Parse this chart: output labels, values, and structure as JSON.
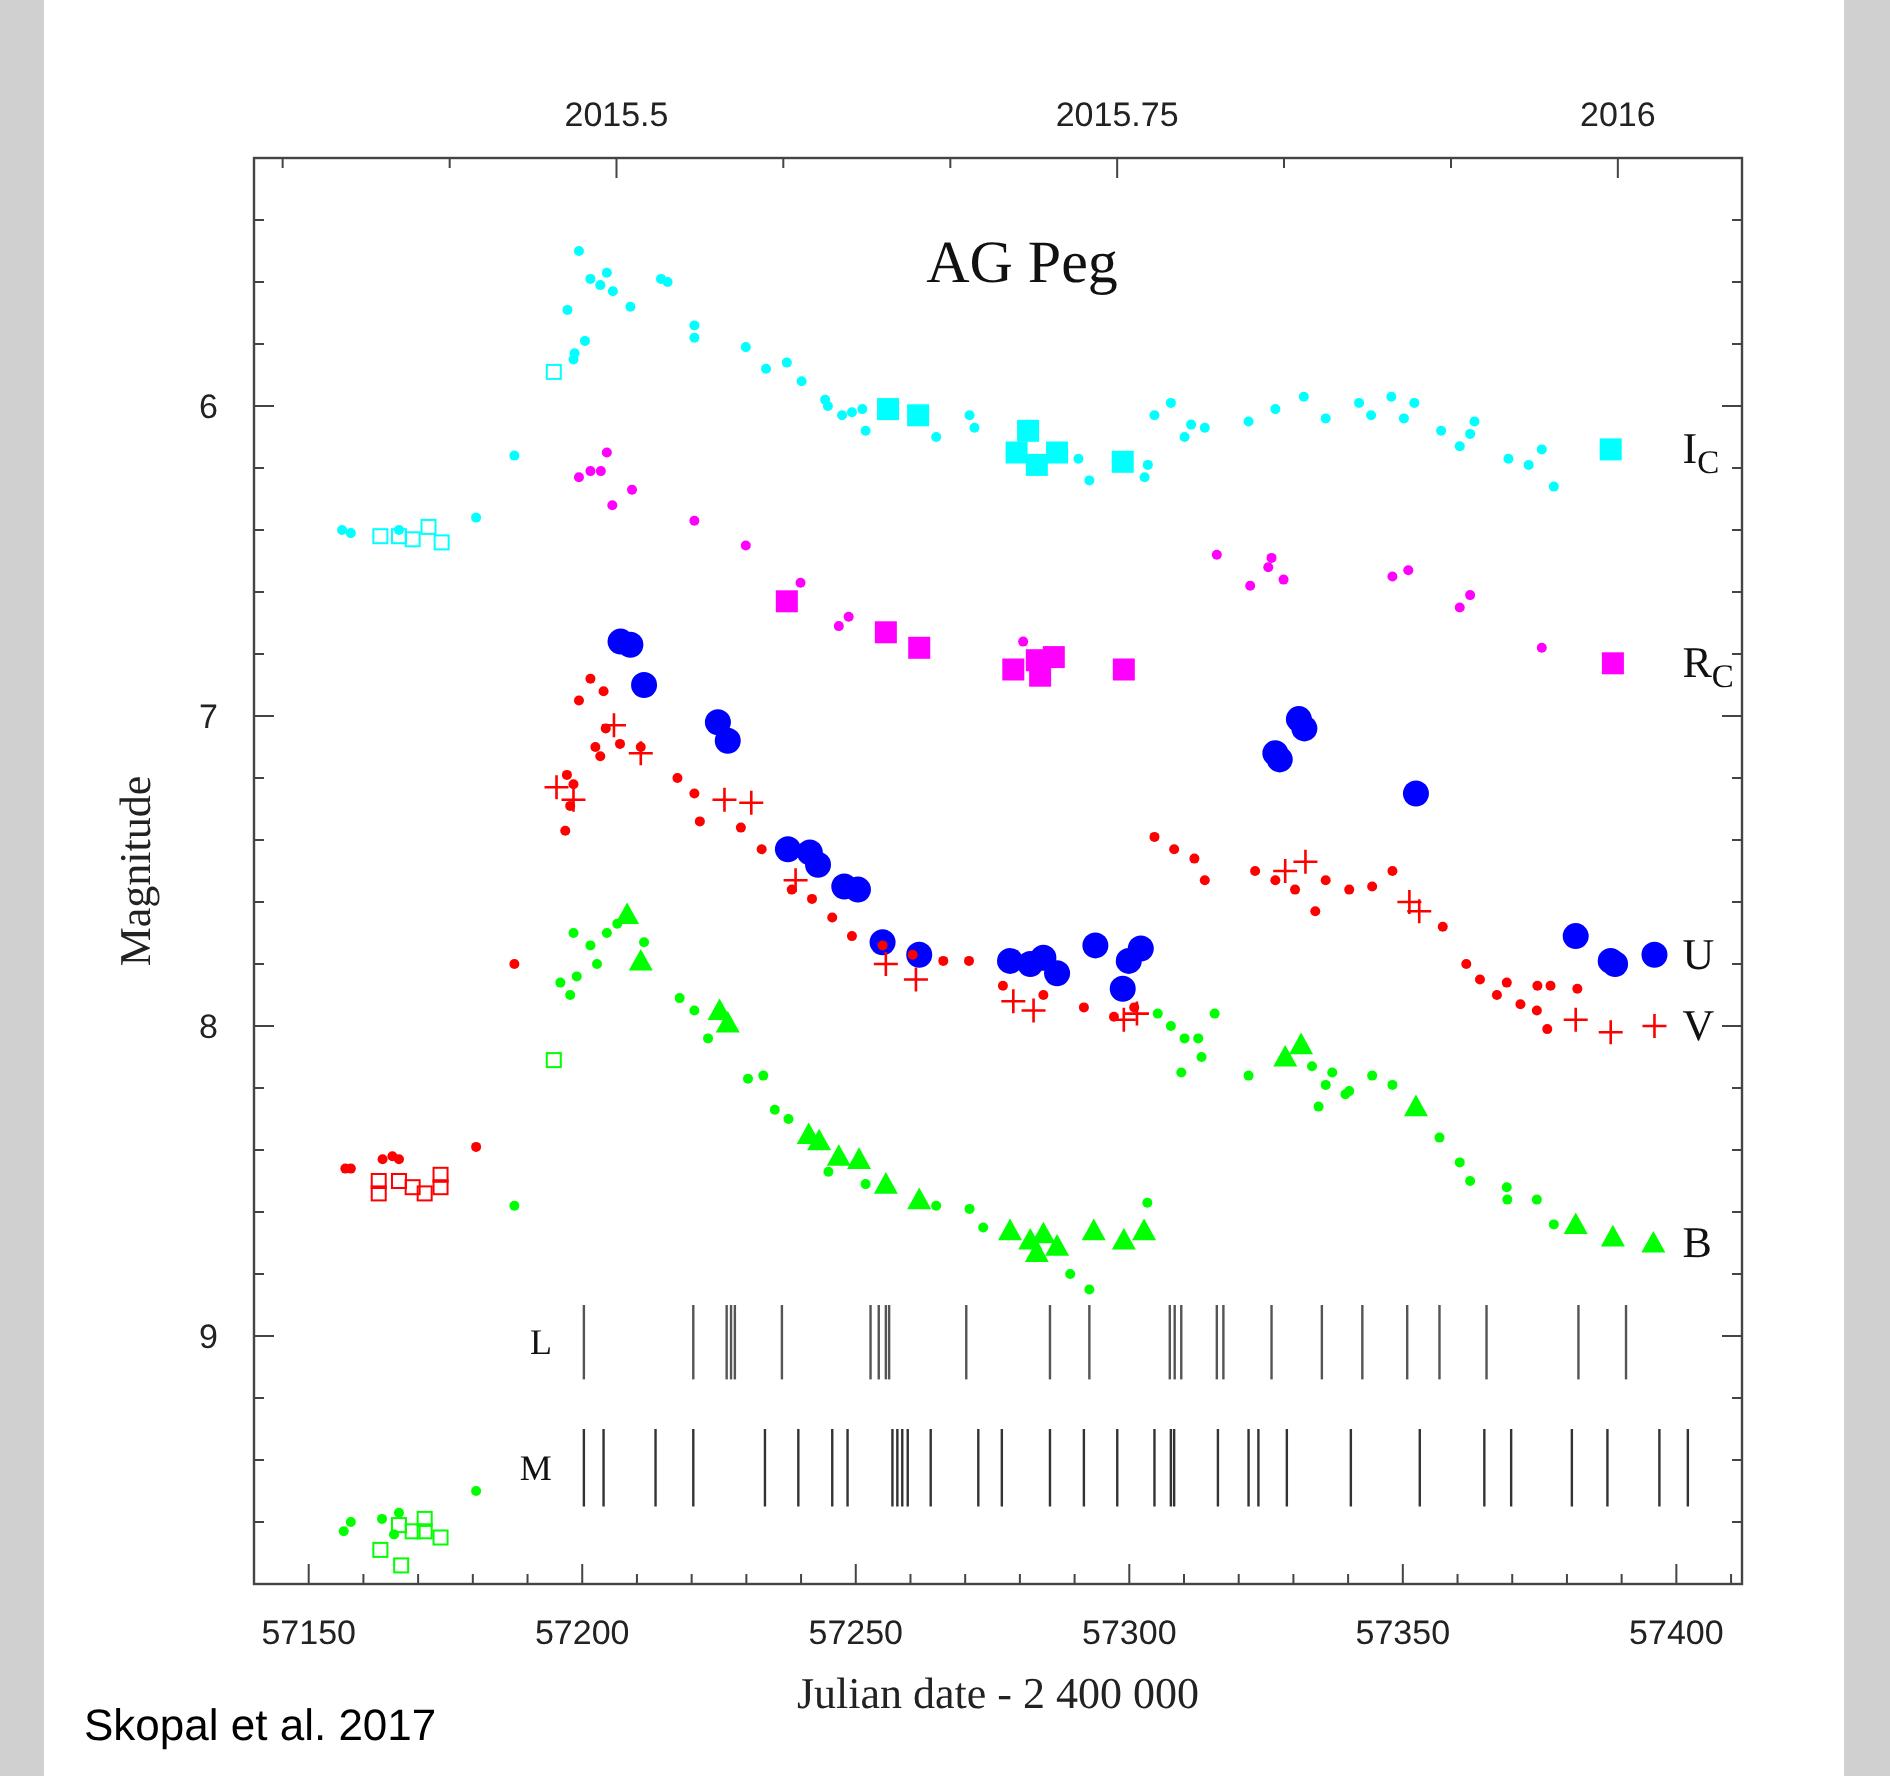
{
  "chart_data": {
    "type": "scatter",
    "title": "AG Peg",
    "xlabel": "Julian date - 2 400 000",
    "ylabel": "Magnitude",
    "annotations": [
      "Skopal et al. 2017"
    ],
    "xlim": [
      57140,
      57412
    ],
    "ylim": [
      9.8,
      5.2
    ],
    "xticks": [
      {
        "value": 57140,
        "label": null
      },
      57150,
      {
        "value": 57160,
        "label": null
      },
      {
        "value": 57170,
        "label": null
      },
      {
        "value": 57180,
        "label": null
      },
      {
        "value": 57190,
        "label": null
      },
      57200,
      {
        "value": 57210,
        "label": null
      },
      {
        "value": 57220,
        "label": null
      },
      {
        "value": 57230,
        "label": null
      },
      {
        "value": 57240,
        "label": null
      },
      57250,
      {
        "value": 57260,
        "label": null
      },
      {
        "value": 57270,
        "label": null
      },
      {
        "value": 57280,
        "label": null
      },
      {
        "value": 57290,
        "label": null
      },
      57300,
      {
        "value": 57310,
        "label": null
      },
      {
        "value": 57320,
        "label": null
      },
      {
        "value": 57330,
        "label": null
      },
      {
        "value": 57340,
        "label": null
      },
      57350,
      {
        "value": 57360,
        "label": null
      },
      {
        "value": 57370,
        "label": null
      },
      {
        "value": 57380,
        "label": null
      },
      {
        "value": 57390,
        "label": null
      },
      57400,
      {
        "value": 57410,
        "label": null
      }
    ],
    "yticks": [
      {
        "value": 5.4,
        "label": null
      },
      {
        "value": 5.6,
        "label": null
      },
      {
        "value": 5.8,
        "label": null
      },
      6,
      {
        "value": 6.2,
        "label": null
      },
      {
        "value": 6.4,
        "label": null
      },
      {
        "value": 6.6,
        "label": null
      },
      {
        "value": 6.8,
        "label": null
      },
      7,
      {
        "value": 7.2,
        "label": null
      },
      {
        "value": 7.4,
        "label": null
      },
      {
        "value": 7.6,
        "label": null
      },
      {
        "value": 7.8,
        "label": null
      },
      8,
      {
        "value": 8.2,
        "label": null
      },
      {
        "value": 8.4,
        "label": null
      },
      {
        "value": 8.6,
        "label": null
      },
      {
        "value": 8.8,
        "label": null
      },
      9,
      {
        "value": 9.2,
        "label": null
      },
      {
        "value": 9.4,
        "label": null
      },
      {
        "value": 9.6,
        "label": null
      }
    ],
    "x2lim": [
      2015.319,
      2016.062
    ],
    "x2ticks": [
      {
        "value": 2015.3333,
        "label": null
      },
      {
        "value": 2015.4167,
        "label": null
      },
      2015.5,
      {
        "value": 2015.5833,
        "label": null
      },
      {
        "value": 2015.6667,
        "label": null
      },
      2015.75,
      {
        "value": 2015.8333,
        "label": null
      },
      {
        "value": 2015.9167,
        "label": null
      },
      2016
    ],
    "grid": false,
    "series": [
      {
        "marker": "circle",
        "color": "#00ffff",
        "x": [
          57156.1,
          57157.7,
          57166.5,
          57180.6,
          57187.6,
          57198.4,
          57198.6,
          57200.5,
          57197.3,
          57199.4,
          57201.5,
          57203.3,
          57204.5,
          57205.6,
          57208.8,
          57214.4,
          57215.6,
          57220.5,
          57220.5,
          57229.9,
          57233.6,
          57237.4,
          57240.1,
          57244.4,
          57244.9,
          57247.5,
          57249.3,
          57251.8,
          57251.2,
          57264.7,
          57270.8,
          57271.7,
          57290.7,
          57292.7,
          57303.4,
          57302.8,
          57304.6,
          57307.6,
          57310.1,
          57311.3,
          57313.8,
          57321.8,
          57326.7,
          57331.9,
          57335.9,
          57342,
          57344.2,
          57347.9,
          57350.2,
          57352.1,
          57357,
          57360.4,
          57362.3,
          57363.1,
          57369.3,
          57373,
          57375.4,
          57377.6
        ],
        "values": [
          6.4,
          6.41,
          6.4,
          6.36,
          6.16,
          5.85,
          5.83,
          5.79,
          5.69,
          5.5,
          5.59,
          5.61,
          5.57,
          5.63,
          5.68,
          5.59,
          5.6,
          5.74,
          5.78,
          5.81,
          5.88,
          5.86,
          5.92,
          5.98,
          6.0,
          6.03,
          6.02,
          6.08,
          6.01,
          6.1,
          6.03,
          6.07,
          6.17,
          6.24,
          6.19,
          6.23,
          6.03,
          5.99,
          6.1,
          6.06,
          6.07,
          6.05,
          6.01,
          5.97,
          6.04,
          5.99,
          6.03,
          5.97,
          6.04,
          5.99,
          6.08,
          6.13,
          6.09,
          6.05,
          6.17,
          6.19,
          6.14,
          6.26
        ]
      },
      {
        "marker": "square",
        "color": "#00ffff",
        "name": "I$_{C}$",
        "x": [
          57255.9,
          57261.4,
          57281.5,
          57279.4,
          57283.1,
          57286.8,
          57298.8,
          57388
        ],
        "values": [
          6.01,
          6.03,
          6.08,
          6.15,
          6.19,
          6.15,
          6.18,
          6.14
        ]
      },
      {
        "marker": "square",
        "color": "#00ffff",
        "x": [
          57163.1,
          57166.5,
          57169,
          57171.9,
          57174.3,
          57194.8
        ],
        "values": [
          6.42,
          6.42,
          6.43,
          6.39,
          6.44,
          5.89
        ]
      },
      {
        "marker": "circle",
        "color": "#ff00ff",
        "x": [
          57204.5,
          57199.4,
          57201.5,
          57203.4,
          57205.5,
          57209.1,
          57220.5,
          57229.9,
          57239.9,
          57246.9,
          57248.7,
          57280.6,
          57316,
          57322.1,
          57326,
          57325.4,
          57328.2,
          57348.1,
          57351,
          57360.4,
          57362.3,
          57375.4
        ],
        "values": [
          6.15,
          6.23,
          6.21,
          6.21,
          6.32,
          6.27,
          6.37,
          6.45,
          6.57,
          6.71,
          6.68,
          6.76,
          6.48,
          6.58,
          6.49,
          6.52,
          6.56,
          6.55,
          6.53,
          6.65,
          6.61,
          6.78
        ]
      },
      {
        "marker": "square",
        "color": "#ff00ff",
        "name": "R$_{C}$",
        "x": [
          57237.4,
          57255.5,
          57261.6,
          57278.8,
          57283.1,
          57286.2,
          57283.7,
          57299,
          57388.4
        ],
        "values": [
          6.63,
          6.73,
          6.78,
          6.85,
          6.82,
          6.81,
          6.87,
          6.85,
          6.83
        ]
      },
      {
        "marker": "circle",
        "color": "#0000ff",
        "name": "U",
        "x": [
          57207,
          57208.8,
          57211.3,
          57224.8,
          57226.6,
          57237.6,
          57241.6,
          57243.1,
          57247.9,
          57250.4,
          57254.9,
          57261.6,
          57278.2,
          57281.9,
          57284.3,
          57286.8,
          57293.8,
          57299.9,
          57302.1,
          57298.8,
          57331,
          57332,
          57326.7,
          57327.5,
          57352.4,
          57381.6,
          57388,
          57388.8,
          57396
        ],
        "values": [
          6.76,
          6.77,
          6.9,
          7.02,
          7.08,
          7.43,
          7.44,
          7.48,
          7.55,
          7.56,
          7.73,
          7.77,
          7.79,
          7.8,
          7.78,
          7.83,
          7.74,
          7.79,
          7.75,
          7.88,
          7.01,
          7.04,
          7.12,
          7.14,
          7.25,
          7.71,
          7.79,
          7.8,
          7.77
        ]
      },
      {
        "marker": "circle",
        "color": "#ff0000",
        "x": [
          57156.7,
          57157.7,
          57163.5,
          57165.3,
          57166.5,
          57180.6,
          57187.6,
          57197.2,
          57197.8,
          57196.9,
          57199.4,
          57198.4,
          57203.3,
          57203.9,
          57201.5,
          57204.3,
          57206.9,
          57210.7,
          57202.4,
          57217.4,
          57220.5,
          57221.5,
          57229,
          57232.8,
          57238.3,
          57242,
          57245.7,
          57249.3,
          57254.9,
          57260.4,
          57266,
          57270.7,
          57276.9,
          57284.3,
          57291.7,
          57297.2,
          57300.9,
          57304.6,
          57308.2,
          57311.9,
          57313.8,
          57323,
          57326.7,
          57330.3,
          57334,
          57335.9,
          57340.2,
          57344.4,
          57348.1,
          57357.3,
          57361.6,
          57364.1,
          57367.2,
          57369,
          57371.5,
          57374.5,
          57376.4,
          57374.6,
          57377,
          57381.9
        ],
        "values": [
          8.46,
          8.46,
          8.43,
          8.42,
          8.43,
          8.39,
          7.8,
          7.19,
          7.29,
          7.37,
          6.95,
          7.22,
          7.13,
          6.92,
          6.88,
          7.04,
          7.09,
          7.1,
          7.1,
          7.2,
          7.25,
          7.34,
          7.36,
          7.43,
          7.56,
          7.59,
          7.65,
          7.71,
          7.74,
          7.77,
          7.79,
          7.79,
          7.87,
          7.9,
          7.94,
          7.97,
          7.94,
          7.39,
          7.43,
          7.46,
          7.53,
          7.5,
          7.53,
          7.56,
          7.63,
          7.53,
          7.56,
          7.55,
          7.5,
          7.68,
          7.8,
          7.85,
          7.9,
          7.86,
          7.93,
          7.95,
          8.01,
          7.87,
          7.87,
          7.88
        ]
      },
      {
        "marker": "cross",
        "color": "#ff0000",
        "name": "V",
        "x": [
          57195.3,
          57198.4,
          57205.8,
          57210.7,
          57226,
          57230.9,
          57239,
          57255.5,
          57261,
          57278.8,
          57282.5,
          57299,
          57301.4,
          57328.5,
          57332.2,
          57351.2,
          57353,
          57381.6,
          57388,
          57396
        ],
        "values": [
          7.23,
          7.27,
          7.03,
          7.12,
          7.27,
          7.28,
          7.53,
          7.8,
          7.85,
          7.92,
          7.95,
          7.98,
          7.96,
          7.5,
          7.47,
          7.6,
          7.63,
          7.98,
          8.02,
          8.0
        ]
      },
      {
        "marker": "square",
        "color": "#ff0000",
        "x": [
          57162.8,
          57162.8,
          57166.5,
          57169,
          57171.2,
          57174.1,
          57174.1
        ],
        "values": [
          8.5,
          8.54,
          8.5,
          8.52,
          8.54,
          8.48,
          8.52
        ]
      },
      {
        "marker": "circle",
        "color": "#00ff00",
        "x": [
          57156.4,
          57157.7,
          57163.4,
          57166.5,
          57165.6,
          57180.6,
          57187.6,
          57198.4,
          57199,
          57196,
          57197.8,
          57201.5,
          57202.7,
          57204.5,
          57206.4,
          57211.3,
          57217.8,
          57220.5,
          57223,
          57230.3,
          57233.1,
          57235.2,
          57237.7,
          57245,
          57251.8,
          57264.7,
          57270.8,
          57273.3,
          57289.2,
          57292.7,
          57303.3,
          57305.2,
          57307.6,
          57310.1,
          57309.5,
          57312.6,
          57313.2,
          57315.6,
          57321.8,
          57333.4,
          57334.6,
          57335.9,
          57337.1,
          57339.5,
          57340.2,
          57344.4,
          57348.1,
          57356.7,
          57360.4,
          57362.3,
          57369,
          57369.1,
          57374.5,
          57377.6
        ],
        "values": [
          9.63,
          9.6,
          9.59,
          9.57,
          9.64,
          9.5,
          8.58,
          7.7,
          7.84,
          7.86,
          7.9,
          7.74,
          7.8,
          7.7,
          7.67,
          7.73,
          7.91,
          7.95,
          8.04,
          8.17,
          8.16,
          8.27,
          8.3,
          8.47,
          8.51,
          8.58,
          8.59,
          8.65,
          8.8,
          8.85,
          8.57,
          7.96,
          8.0,
          8.04,
          8.15,
          8.04,
          8.1,
          7.96,
          8.16,
          8.13,
          8.26,
          8.19,
          8.15,
          8.22,
          8.21,
          8.16,
          8.19,
          8.36,
          8.44,
          8.5,
          8.52,
          8.56,
          8.56,
          8.64
        ]
      },
      {
        "marker": "triangle",
        "color": "#00ff00",
        "name": "B",
        "x": [
          57208.2,
          57210.7,
          57225.1,
          57226.6,
          57241.4,
          57243.3,
          57246.9,
          57250.6,
          57255.5,
          57261.6,
          57278.2,
          57281.9,
          57284.3,
          57283.1,
          57286.8,
          57293.5,
          57299,
          57302.7,
          57328.5,
          57331.4,
          57352.4,
          57381.6,
          57388.4,
          57395.8
        ],
        "values": [
          7.64,
          7.79,
          7.95,
          7.99,
          8.35,
          8.37,
          8.42,
          8.43,
          8.51,
          8.56,
          8.66,
          8.69,
          8.67,
          8.73,
          8.71,
          8.66,
          8.69,
          8.66,
          8.1,
          8.06,
          8.26,
          8.64,
          8.68,
          8.7
        ]
      },
      {
        "marker": "square",
        "color": "#00ff00",
        "x": [
          57163.1,
          57166.5,
          57166.9,
          57169,
          57171.2,
          57171.2,
          57174.1,
          57194.8
        ],
        "values": [
          9.69,
          9.61,
          9.74,
          9.63,
          9.59,
          9.63,
          9.65,
          8.11
        ]
      },
      {
        "type": "bar",
        "name": "M",
        "color": "#333333",
        "x": [
          57200.3,
          57203.9,
          57213.4,
          57220.3,
          57233.4,
          57239.5,
          57245.7,
          57248.5,
          57256.7,
          57257.6,
          57258.5,
          57259.5,
          57263.7,
          57272.4,
          57276.7,
          57285.5,
          57291.7,
          57297.8,
          57304.6,
          57307.6,
          57308.2,
          57316.2,
          57321.8,
          57323.6,
          57328.8,
          57340.5,
          57353.1,
          57364.9,
          57369.8,
          57380.9,
          57387.4,
          57396.9,
          57402.1
        ],
        "base": [
          9.3,
          9.3,
          9.3,
          9.3,
          9.3,
          9.3,
          9.3,
          9.3,
          9.3,
          9.3,
          9.3,
          9.3,
          9.3,
          9.3,
          9.3,
          9.3,
          9.3,
          9.3,
          9.3,
          9.3,
          9.3,
          9.3,
          9.3,
          9.3,
          9.3,
          9.3,
          9.3,
          9.3,
          9.3,
          9.3,
          9.3,
          9.3,
          9.3
        ],
        "values": [
          0.25,
          0.25,
          0.25,
          0.25,
          0.25,
          0.25,
          0.25,
          0.25,
          0.25,
          0.25,
          0.25,
          0.25,
          0.25,
          0.25,
          0.25,
          0.25,
          0.25,
          0.25,
          0.25,
          0.25,
          0.25,
          0.25,
          0.25,
          0.25,
          0.25,
          0.25,
          0.25,
          0.25,
          0.25,
          0.25,
          0.25,
          0.25,
          0.25
        ]
      },
      {
        "type": "bar",
        "name": "L",
        "color": "#555555",
        "x": [
          57200.3,
          57220.3,
          57226.4,
          57227.2,
          57227.9,
          57236.5,
          57252.7,
          57254.2,
          57255.5,
          57256.1,
          57270.2,
          57285.5,
          57292.7,
          57307.4,
          57308.3,
          57309.5,
          57316,
          57317.2,
          57326,
          57335.2,
          57342.6,
          57350.8,
          57356.7,
          57365.3,
          57382.1,
          57390.8
        ],
        "base": [
          8.9,
          8.9,
          8.9,
          8.9,
          8.9,
          8.9,
          8.9,
          8.9,
          8.9,
          8.9,
          8.9,
          8.9,
          8.9,
          8.9,
          8.9,
          8.9,
          8.9,
          8.9,
          8.9,
          8.9,
          8.9,
          8.9,
          8.9,
          8.9,
          8.9,
          8.9
        ],
        "values": [
          0.24,
          0.24,
          0.24,
          0.24,
          0.24,
          0.24,
          0.24,
          0.24,
          0.24,
          0.24,
          0.24,
          0.24,
          0.24,
          0.24,
          0.24,
          0.24,
          0.24,
          0.24,
          0.24,
          0.24,
          0.24,
          0.24,
          0.24,
          0.24,
          0.24,
          0.24
        ]
      }
    ]
  }
}
